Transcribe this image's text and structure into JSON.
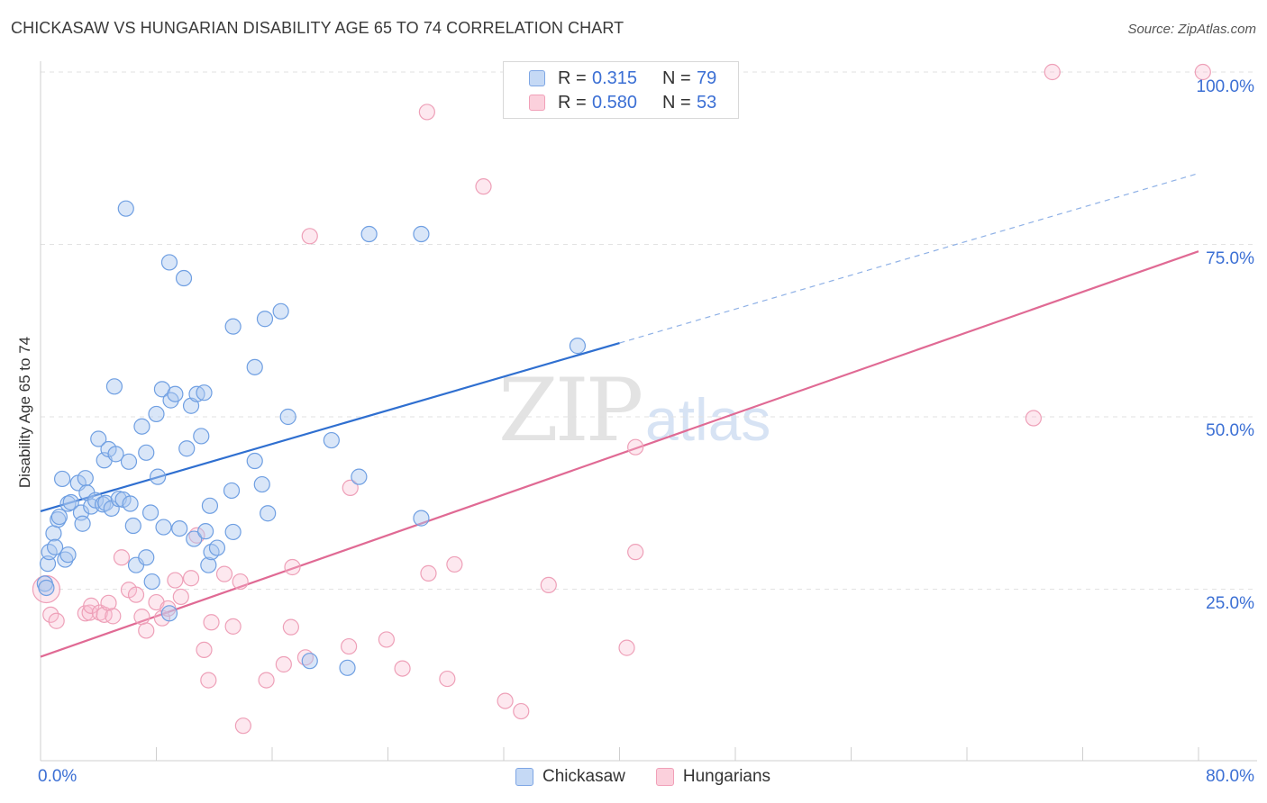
{
  "header": {
    "title": "CHICKASAW VS HUNGARIAN DISABILITY AGE 65 TO 74 CORRELATION CHART",
    "source": "Source: ZipAtlas.com"
  },
  "watermark": {
    "zip": "ZIP",
    "atlas": "atlas"
  },
  "legend_top": [
    {
      "r_label": "R =",
      "r_value": "0.315",
      "n_label": "N =",
      "n_value": "79"
    },
    {
      "r_label": "R =",
      "r_value": "0.580",
      "n_label": "N =",
      "n_value": "53"
    }
  ],
  "legend_bottom": [
    {
      "label": "Chickasaw"
    },
    {
      "label": "Hungarians"
    }
  ],
  "axis": {
    "x_min_label": "0.0%",
    "x_max_label": "80.0%",
    "y_label": "Disability Age 65 to 74",
    "y_ticks": [
      "100.0%",
      "75.0%",
      "50.0%",
      "25.0%"
    ]
  },
  "colors": {
    "blue": "#6f9fe2",
    "blue_line": "#2f6fd0",
    "pink": "#f1a0b8",
    "pink_line": "#e06a94",
    "accent_text": "#3b6fd4"
  },
  "chart_data": {
    "type": "scatter",
    "title": "CHICKASAW VS HUNGARIAN DISABILITY AGE 65 TO 74 CORRELATION CHART",
    "xlabel": "",
    "ylabel": "Disability Age 65 to 74",
    "xlim": [
      0,
      80
    ],
    "ylim": [
      0,
      100
    ],
    "x_ticks": [
      0,
      8,
      16,
      24,
      32,
      40,
      48,
      56,
      64,
      72,
      80
    ],
    "y_ticks": [
      25,
      50,
      75,
      100
    ],
    "series": [
      {
        "name": "Chickasaw",
        "color": "#6f9fe2",
        "r": 0.315,
        "n": 79,
        "trend": {
          "x0": 0,
          "y0": 36.3,
          "x1": 40,
          "y1": 60.7,
          "dash_x1": 80,
          "dash_y1": 85.3
        },
        "points": [
          [
            0.3,
            25.8
          ],
          [
            0.4,
            25.2
          ],
          [
            0.5,
            28.7
          ],
          [
            0.6,
            30.4
          ],
          [
            0.9,
            33.1
          ],
          [
            1.0,
            31.1
          ],
          [
            1.2,
            35.1
          ],
          [
            1.3,
            35.5
          ],
          [
            1.5,
            41.0
          ],
          [
            1.7,
            29.3
          ],
          [
            1.9,
            37.4
          ],
          [
            1.9,
            30.0
          ],
          [
            2.1,
            37.6
          ],
          [
            2.6,
            40.4
          ],
          [
            2.8,
            36.1
          ],
          [
            2.9,
            34.5
          ],
          [
            3.1,
            41.1
          ],
          [
            3.2,
            39.0
          ],
          [
            3.5,
            37.0
          ],
          [
            3.8,
            37.9
          ],
          [
            4.0,
            46.8
          ],
          [
            4.3,
            37.3
          ],
          [
            4.5,
            37.5
          ],
          [
            4.4,
            43.7
          ],
          [
            4.7,
            45.3
          ],
          [
            4.9,
            36.7
          ],
          [
            5.2,
            44.6
          ],
          [
            5.4,
            38.1
          ],
          [
            5.7,
            38.0
          ],
          [
            6.2,
            37.4
          ],
          [
            6.1,
            43.5
          ],
          [
            6.4,
            34.2
          ],
          [
            6.6,
            28.5
          ],
          [
            7.0,
            48.6
          ],
          [
            7.3,
            44.8
          ],
          [
            7.3,
            29.6
          ],
          [
            7.6,
            36.1
          ],
          [
            7.7,
            26.1
          ],
          [
            8.0,
            50.4
          ],
          [
            8.1,
            41.3
          ],
          [
            8.4,
            54.0
          ],
          [
            8.5,
            34.0
          ],
          [
            8.9,
            21.5
          ],
          [
            9.0,
            52.4
          ],
          [
            9.3,
            53.3
          ],
          [
            9.6,
            33.8
          ],
          [
            10.1,
            45.4
          ],
          [
            10.4,
            51.6
          ],
          [
            10.6,
            32.3
          ],
          [
            10.8,
            53.3
          ],
          [
            11.1,
            47.2
          ],
          [
            11.4,
            33.4
          ],
          [
            11.6,
            28.5
          ],
          [
            11.7,
            37.1
          ],
          [
            11.8,
            30.4
          ],
          [
            12.2,
            31.0
          ],
          [
            13.2,
            39.3
          ],
          [
            13.3,
            33.3
          ],
          [
            14.8,
            43.6
          ],
          [
            15.3,
            40.2
          ],
          [
            15.7,
            36.0
          ],
          [
            17.1,
            50.0
          ],
          [
            18.6,
            14.6
          ],
          [
            20.1,
            46.6
          ],
          [
            21.2,
            13.6
          ],
          [
            22.0,
            41.3
          ],
          [
            22.7,
            76.5
          ],
          [
            26.3,
            35.3
          ],
          [
            5.9,
            80.2
          ],
          [
            8.9,
            72.4
          ],
          [
            9.9,
            70.1
          ],
          [
            13.3,
            63.1
          ],
          [
            15.5,
            64.2
          ],
          [
            16.6,
            65.3
          ],
          [
            14.8,
            57.2
          ],
          [
            5.1,
            54.4
          ],
          [
            11.3,
            53.5
          ],
          [
            26.3,
            76.5
          ],
          [
            37.1,
            60.3
          ]
        ]
      },
      {
        "name": "Hungarians",
        "color": "#f1a0b8",
        "r": 0.58,
        "n": 53,
        "trend": {
          "x0": 0,
          "y0": 15.2,
          "x1": 80,
          "y1": 74.0
        },
        "points": [
          [
            0.4,
            25.0
          ],
          [
            0.7,
            21.3
          ],
          [
            1.1,
            20.4
          ],
          [
            3.1,
            21.5
          ],
          [
            3.4,
            21.6
          ],
          [
            3.5,
            22.6
          ],
          [
            4.1,
            21.6
          ],
          [
            4.4,
            21.3
          ],
          [
            4.7,
            23.0
          ],
          [
            5.0,
            21.1
          ],
          [
            5.6,
            29.6
          ],
          [
            6.1,
            24.9
          ],
          [
            6.6,
            24.2
          ],
          [
            7.0,
            21.0
          ],
          [
            7.3,
            19.0
          ],
          [
            8.0,
            23.1
          ],
          [
            8.4,
            20.8
          ],
          [
            8.8,
            22.2
          ],
          [
            9.3,
            26.3
          ],
          [
            9.7,
            23.9
          ],
          [
            10.4,
            26.6
          ],
          [
            10.8,
            32.8
          ],
          [
            11.3,
            16.2
          ],
          [
            11.6,
            11.8
          ],
          [
            11.8,
            20.2
          ],
          [
            12.7,
            27.2
          ],
          [
            13.3,
            19.6
          ],
          [
            13.8,
            26.1
          ],
          [
            14.0,
            5.2
          ],
          [
            15.6,
            11.8
          ],
          [
            16.8,
            14.1
          ],
          [
            17.3,
            19.5
          ],
          [
            17.4,
            28.2
          ],
          [
            18.3,
            15.1
          ],
          [
            18.6,
            76.2
          ],
          [
            21.3,
            16.7
          ],
          [
            21.4,
            39.7
          ],
          [
            23.9,
            17.7
          ],
          [
            25.0,
            13.5
          ],
          [
            26.7,
            94.2
          ],
          [
            26.8,
            27.3
          ],
          [
            28.1,
            12.0
          ],
          [
            28.6,
            28.6
          ],
          [
            30.6,
            83.4
          ],
          [
            32.1,
            8.8
          ],
          [
            33.2,
            7.3
          ],
          [
            35.1,
            25.6
          ],
          [
            40.5,
            16.5
          ],
          [
            41.1,
            30.4
          ],
          [
            41.1,
            45.6
          ],
          [
            68.6,
            49.8
          ],
          [
            69.9,
            100.0
          ],
          [
            80.3,
            100.0
          ]
        ]
      }
    ]
  }
}
